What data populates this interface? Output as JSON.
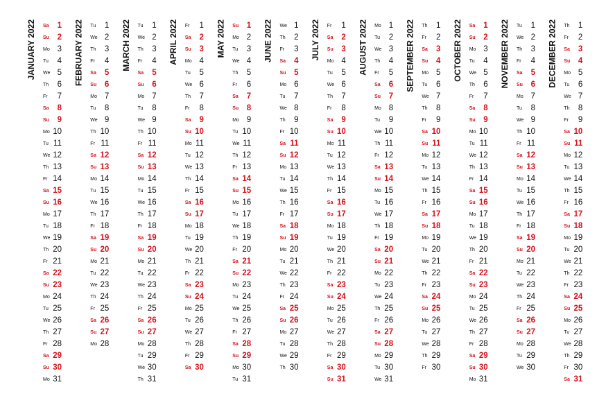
{
  "calendar": {
    "weekend": [
      "Sa",
      "Su"
    ],
    "weekend_color": "#d4101a",
    "text_color": "#111111",
    "months": [
      {
        "title": "JANUARY 2022",
        "weekdays": [
          "Sa",
          "Su",
          "Mo",
          "Tu",
          "We",
          "Th",
          "Fr",
          "Sa",
          "Su",
          "Mo",
          "Tu",
          "We",
          "Th",
          "Fr",
          "Sa",
          "Su",
          "Mo",
          "Tu",
          "We",
          "Th",
          "Fr",
          "Sa",
          "Su",
          "Mo",
          "Tu",
          "We",
          "Th",
          "Fr",
          "Sa",
          "Su",
          "Mo"
        ],
        "days": [
          1,
          2,
          3,
          4,
          5,
          6,
          7,
          8,
          9,
          10,
          11,
          12,
          13,
          14,
          15,
          16,
          17,
          18,
          19,
          20,
          21,
          22,
          23,
          24,
          25,
          26,
          27,
          28,
          29,
          30,
          31
        ]
      },
      {
        "title": "FEBRUARY 2022",
        "weekdays": [
          "Tu",
          "We",
          "Th",
          "Fr",
          "Sa",
          "Su",
          "Mo",
          "Tu",
          "We",
          "Th",
          "Fr",
          "Sa",
          "Su",
          "Mo",
          "Tu",
          "We",
          "Th",
          "Fr",
          "Sa",
          "Su",
          "Mo",
          "Tu",
          "We",
          "Th",
          "Fr",
          "Sa",
          "Su",
          "Mo"
        ],
        "days": [
          1,
          2,
          3,
          4,
          5,
          6,
          7,
          8,
          9,
          10,
          11,
          12,
          13,
          14,
          15,
          16,
          17,
          18,
          19,
          20,
          21,
          22,
          23,
          24,
          25,
          26,
          27,
          28
        ]
      },
      {
        "title": "MARCH 2022",
        "weekdays": [
          "Tu",
          "We",
          "Th",
          "Fr",
          "Sa",
          "Su",
          "Mo",
          "Tu",
          "We",
          "Th",
          "Fr",
          "Sa",
          "Su",
          "Mo",
          "Tu",
          "We",
          "Th",
          "Fr",
          "Sa",
          "Su",
          "Mo",
          "Tu",
          "We",
          "Th",
          "Fr",
          "Sa",
          "Su",
          "Mo",
          "Tu",
          "We",
          "Th"
        ],
        "days": [
          1,
          2,
          3,
          4,
          5,
          6,
          7,
          8,
          9,
          10,
          11,
          12,
          13,
          14,
          15,
          16,
          17,
          18,
          19,
          20,
          21,
          22,
          23,
          24,
          25,
          26,
          27,
          28,
          29,
          30,
          31
        ]
      },
      {
        "title": "APRIL 2022",
        "weekdays": [
          "Fr",
          "Sa",
          "Su",
          "Mo",
          "Tu",
          "We",
          "Th",
          "Fr",
          "Sa",
          "Su",
          "Mo",
          "Tu",
          "We",
          "Th",
          "Fr",
          "Sa",
          "Su",
          "Mo",
          "Tu",
          "We",
          "Th",
          "Fr",
          "Sa",
          "Su",
          "Mo",
          "Tu",
          "We",
          "Th",
          "Fr",
          "Sa"
        ],
        "days": [
          1,
          2,
          3,
          4,
          5,
          6,
          7,
          8,
          9,
          10,
          11,
          12,
          13,
          14,
          15,
          16,
          17,
          18,
          19,
          20,
          21,
          22,
          23,
          24,
          25,
          26,
          27,
          28,
          29,
          30
        ]
      },
      {
        "title": "MAY 2022",
        "weekdays": [
          "Su",
          "Mo",
          "Tu",
          "We",
          "Th",
          "Fr",
          "Sa",
          "Su",
          "Mo",
          "Tu",
          "We",
          "Th",
          "Fr",
          "Sa",
          "Su",
          "Mo",
          "Tu",
          "We",
          "Th",
          "Fr",
          "Sa",
          "Su",
          "Mo",
          "Tu",
          "We",
          "Th",
          "Fr",
          "Sa",
          "Su",
          "Mo",
          "Tu"
        ],
        "days": [
          1,
          2,
          3,
          4,
          5,
          6,
          7,
          8,
          9,
          10,
          11,
          12,
          13,
          14,
          15,
          16,
          17,
          18,
          19,
          20,
          21,
          22,
          23,
          24,
          25,
          26,
          27,
          28,
          29,
          30,
          31
        ]
      },
      {
        "title": "JUNE 2022",
        "weekdays": [
          "We",
          "Th",
          "Fr",
          "Sa",
          "Su",
          "Mo",
          "Tu",
          "We",
          "Th",
          "Fr",
          "Sa",
          "Su",
          "Mo",
          "Tu",
          "We",
          "Th",
          "Fr",
          "Sa",
          "Su",
          "Mo",
          "Tu",
          "We",
          "Th",
          "Fr",
          "Sa",
          "Su",
          "Mo",
          "Tu",
          "We",
          "Th"
        ],
        "days": [
          1,
          2,
          3,
          4,
          5,
          6,
          7,
          8,
          9,
          10,
          11,
          12,
          13,
          14,
          15,
          16,
          17,
          18,
          19,
          20,
          21,
          22,
          23,
          24,
          25,
          26,
          27,
          28,
          29,
          30
        ]
      },
      {
        "title": "JULY 2022",
        "weekdays": [
          "Fr",
          "Sa",
          "Su",
          "Mo",
          "Tu",
          "We",
          "Th",
          "Fr",
          "Sa",
          "Su",
          "Mo",
          "Tu",
          "We",
          "Th",
          "Fr",
          "Sa",
          "Su",
          "Mo",
          "Tu",
          "We",
          "Th",
          "Fr",
          "Sa",
          "Su",
          "Mo",
          "Tu",
          "We",
          "Th",
          "Fr",
          "Sa",
          "Su"
        ],
        "days": [
          1,
          2,
          3,
          4,
          5,
          6,
          7,
          8,
          9,
          10,
          11,
          12,
          13,
          14,
          15,
          16,
          17,
          18,
          19,
          20,
          21,
          22,
          23,
          24,
          25,
          26,
          27,
          28,
          29,
          30,
          31
        ]
      },
      {
        "title": "AUGUST 2022",
        "weekdays": [
          "Mo",
          "Tu",
          "We",
          "Th",
          "Fr",
          "Sa",
          "Su",
          "Mo",
          "Tu",
          "We",
          "Th",
          "Fr",
          "Sa",
          "Su",
          "Mo",
          "Tu",
          "We",
          "Th",
          "Fr",
          "Sa",
          "Su",
          "Mo",
          "Tu",
          "We",
          "Th",
          "Fr",
          "Sa",
          "Su",
          "Mo",
          "Tu",
          "We"
        ],
        "days": [
          1,
          2,
          3,
          4,
          5,
          6,
          7,
          8,
          9,
          10,
          11,
          12,
          13,
          14,
          15,
          16,
          17,
          18,
          19,
          20,
          21,
          22,
          23,
          24,
          25,
          26,
          27,
          28,
          29,
          30,
          31
        ]
      },
      {
        "title": "SEPTEMBER 2022",
        "weekdays": [
          "Th",
          "Fr",
          "Sa",
          "Su",
          "Mo",
          "Tu",
          "We",
          "Th",
          "Fr",
          "Sa",
          "Su",
          "Mo",
          "Tu",
          "We",
          "Th",
          "Fr",
          "Sa",
          "Su",
          "Mo",
          "Tu",
          "We",
          "Th",
          "Fr",
          "Sa",
          "Su",
          "Mo",
          "Tu",
          "We",
          "Th",
          "Fr"
        ],
        "days": [
          1,
          2,
          3,
          4,
          5,
          6,
          7,
          8,
          9,
          10,
          11,
          12,
          13,
          14,
          15,
          16,
          17,
          18,
          19,
          20,
          21,
          22,
          23,
          24,
          25,
          26,
          27,
          28,
          29,
          30
        ]
      },
      {
        "title": "OCTOBER 2022",
        "weekdays": [
          "Sa",
          "Su",
          "Mo",
          "Tu",
          "We",
          "Th",
          "Fr",
          "Sa",
          "Su",
          "Mo",
          "Tu",
          "We",
          "Th",
          "Fr",
          "Sa",
          "Su",
          "Mo",
          "Tu",
          "We",
          "Th",
          "Fr",
          "Sa",
          "Su",
          "Mo",
          "Tu",
          "We",
          "Th",
          "Fr",
          "Sa",
          "Su",
          "Mo"
        ],
        "days": [
          1,
          2,
          3,
          4,
          5,
          6,
          7,
          8,
          9,
          10,
          11,
          12,
          13,
          14,
          15,
          16,
          17,
          18,
          19,
          20,
          21,
          22,
          23,
          24,
          25,
          26,
          27,
          28,
          29,
          30,
          31
        ]
      },
      {
        "title": "NOVEMBER 2022",
        "weekdays": [
          "Tu",
          "We",
          "Th",
          "Fr",
          "Sa",
          "Su",
          "Mo",
          "Tu",
          "We",
          "Th",
          "Fr",
          "Sa",
          "Su",
          "Mo",
          "Tu",
          "We",
          "Th",
          "Fr",
          "Sa",
          "Su",
          "Mo",
          "Tu",
          "We",
          "Th",
          "Fr",
          "Sa",
          "Su",
          "Mo",
          "Tu",
          "We"
        ],
        "days": [
          1,
          2,
          3,
          4,
          5,
          6,
          7,
          8,
          9,
          10,
          11,
          12,
          13,
          14,
          15,
          16,
          17,
          18,
          19,
          20,
          21,
          22,
          23,
          24,
          25,
          26,
          27,
          28,
          29,
          30
        ]
      },
      {
        "title": "DECEMBER 2022",
        "weekdays": [
          "Th",
          "Fr",
          "Sa",
          "Su",
          "Mo",
          "Tu",
          "We",
          "Th",
          "Fr",
          "Sa",
          "Su",
          "Mo",
          "Tu",
          "We",
          "Th",
          "Fr",
          "Sa",
          "Su",
          "Mo",
          "Tu",
          "We",
          "Th",
          "Fr",
          "Sa",
          "Su",
          "Mo",
          "Tu",
          "We",
          "Th",
          "Fr",
          "Sa"
        ],
        "days": [
          1,
          2,
          3,
          4,
          5,
          6,
          7,
          8,
          9,
          10,
          11,
          12,
          13,
          14,
          15,
          16,
          17,
          18,
          19,
          20,
          21,
          22,
          23,
          24,
          25,
          26,
          27,
          28,
          29,
          30,
          31
        ]
      }
    ]
  }
}
